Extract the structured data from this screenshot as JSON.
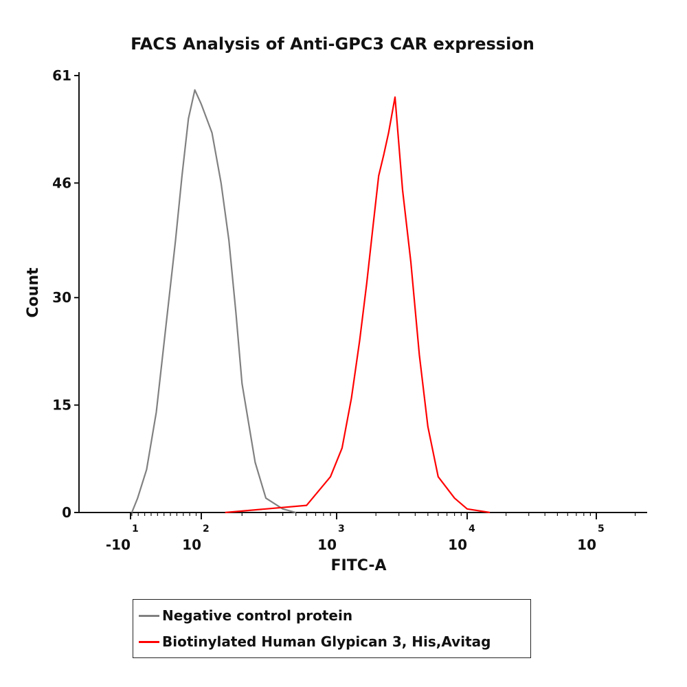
{
  "chart_data": {
    "type": "line",
    "title": "FACS Analysis of Anti-GPC3 CAR expression",
    "xlabel": "FITC-A",
    "ylabel": "Count",
    "x_scale": "biexponential (log above ~10^1.5)",
    "x_ticks": [
      {
        "base": "-10",
        "exp": "1",
        "value": -10
      },
      {
        "base": "10",
        "exp": "2",
        "value": 100
      },
      {
        "base": "10",
        "exp": "3",
        "value": 1000
      },
      {
        "base": "10",
        "exp": "4",
        "value": 10000
      },
      {
        "base": "10",
        "exp": "5",
        "value": 100000
      }
    ],
    "y_ticks": [
      0,
      15,
      30,
      46,
      61
    ],
    "ylim": [
      0,
      61
    ],
    "legend_position": "bottom",
    "grid": false,
    "series": [
      {
        "name": "Negative control protein",
        "color": "#808080",
        "x": [
          -8,
          1,
          15,
          30,
          45,
          60,
          70,
          80,
          90,
          100,
          120,
          140,
          160,
          180,
          200,
          250,
          300,
          400,
          500
        ],
        "y": [
          0,
          2,
          6,
          14,
          26,
          38,
          47,
          55,
          59,
          57,
          53,
          46,
          38,
          28,
          18,
          7,
          2,
          0.5,
          0
        ]
      },
      {
        "name": "Biotinylated Human Glypican 3, His,Avitag",
        "color": "#ff0000",
        "x": [
          150,
          300,
          600,
          900,
          1100,
          1300,
          1500,
          1700,
          1900,
          2100,
          2300,
          2500,
          2800,
          3200,
          3700,
          4300,
          5000,
          6000,
          8000,
          10000,
          15000
        ],
        "y": [
          0,
          0.5,
          1,
          5,
          9,
          16,
          24,
          32,
          40,
          47,
          50,
          53,
          58,
          45,
          35,
          22,
          12,
          5,
          2,
          0.5,
          0
        ]
      }
    ]
  },
  "legend": {
    "items": [
      {
        "label": "Negative control protein",
        "color": "#808080"
      },
      {
        "label": "Biotinylated Human Glypican 3, His,Avitag",
        "color": "#ff0000"
      }
    ]
  }
}
